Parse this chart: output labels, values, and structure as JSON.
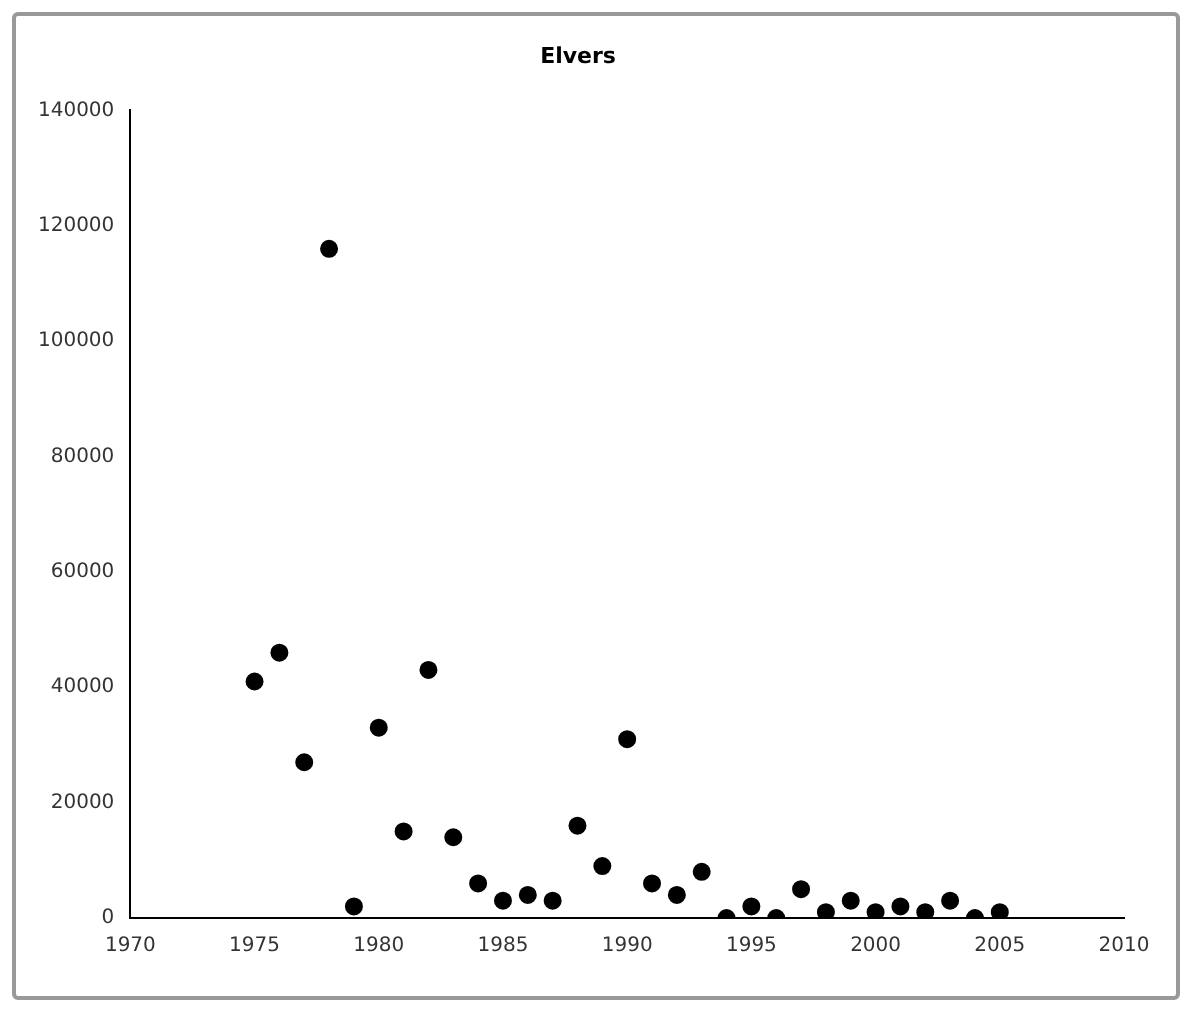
{
  "chart_data": {
    "type": "scatter",
    "title": "Elvers",
    "marker": "circle",
    "grid": false,
    "legend": false,
    "x": [
      1975,
      1976,
      1977,
      1978,
      1979,
      1980,
      1981,
      1982,
      1983,
      1984,
      1985,
      1986,
      1987,
      1988,
      1989,
      1990,
      1991,
      1992,
      1993,
      1994,
      1995,
      1996,
      1997,
      1998,
      1999,
      2000,
      2001,
      2002,
      2003,
      2004,
      2005
    ],
    "series": [
      {
        "color": "#000000",
        "values": [
          41000,
          46000,
          27000,
          116000,
          2000,
          33000,
          15000,
          43000,
          14000,
          6000,
          3000,
          4000,
          3000,
          16000,
          9000,
          31000,
          6000,
          4000,
          8000,
          0,
          2000,
          0,
          5000,
          1000,
          3000,
          1000,
          2000,
          1000,
          3000,
          0,
          1000
        ]
      }
    ],
    "xlim": [
      1970,
      2010
    ],
    "xticks": [
      1970,
      1975,
      1980,
      1985,
      1990,
      1995,
      2000,
      2005,
      2010
    ],
    "ylim": [
      0,
      140000
    ],
    "yticks": [
      0,
      20000,
      40000,
      60000,
      80000,
      100000,
      120000,
      140000
    ]
  }
}
